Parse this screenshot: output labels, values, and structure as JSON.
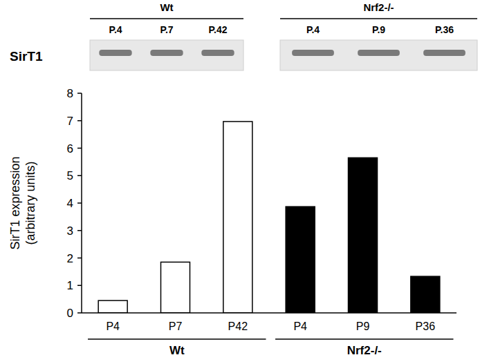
{
  "chart_data": {
    "type": "bar",
    "ylabel": "SirT1 expression (arbitrary units)",
    "categories": [
      "P4",
      "P7",
      "P42",
      "P4",
      "P9",
      "P36"
    ],
    "values": [
      0.45,
      1.85,
      6.97,
      3.87,
      5.65,
      1.33
    ],
    "colors": [
      "#ffffff",
      "#ffffff",
      "#ffffff",
      "#000000",
      "#000000",
      "#000000"
    ],
    "ylim": [
      0,
      8
    ],
    "yticks": [
      0,
      1,
      2,
      3,
      4,
      5,
      6,
      7,
      8
    ],
    "grid": false,
    "x_groups": [
      {
        "label": "Wt",
        "count": 3
      },
      {
        "label": "Nrf2-/-",
        "count": 3
      }
    ]
  },
  "blot": {
    "label": "SirT1",
    "groups": [
      {
        "name": "Wt",
        "lanes": [
          "P.4",
          "P.7",
          "P.42"
        ]
      },
      {
        "name": "Nrf2-/-",
        "lanes": [
          "P.4",
          "P.9",
          "P.36"
        ]
      }
    ]
  }
}
